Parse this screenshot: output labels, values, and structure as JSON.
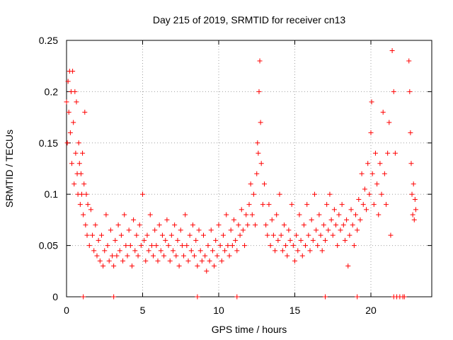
{
  "chart_data": {
    "type": "scatter",
    "title": "Day 215 of 2019, SRMTID for receiver cn13",
    "xlabel": "GPS time / hours",
    "ylabel": "SRMTID / TECUs",
    "xlim": [
      0,
      24
    ],
    "ylim": [
      0,
      0.25
    ],
    "x_ticks": [
      0,
      5,
      10,
      15,
      20
    ],
    "x_tick_labels": [
      "0",
      "5",
      "10",
      "15",
      "20"
    ],
    "y_ticks": [
      0,
      0.05,
      0.1,
      0.15,
      0.2,
      0.25
    ],
    "y_tick_labels": [
      "0",
      "0.05",
      "0.1",
      "0.15",
      "0.2",
      "0.25"
    ],
    "grid": true,
    "marker": "+",
    "series": [
      {
        "name": "cn13",
        "color": "#ff0000",
        "points": [
          [
            0.0,
            0.19
          ],
          [
            0.05,
            0.15
          ],
          [
            0.1,
            0.21
          ],
          [
            0.15,
            0.18
          ],
          [
            0.2,
            0.22
          ],
          [
            0.25,
            0.16
          ],
          [
            0.3,
            0.2
          ],
          [
            0.35,
            0.13
          ],
          [
            0.4,
            0.22
          ],
          [
            0.45,
            0.17
          ],
          [
            0.5,
            0.11
          ],
          [
            0.55,
            0.2
          ],
          [
            0.6,
            0.14
          ],
          [
            0.65,
            0.19
          ],
          [
            0.7,
            0.12
          ],
          [
            0.75,
            0.1
          ],
          [
            0.8,
            0.15
          ],
          [
            0.85,
            0.13
          ],
          [
            0.9,
            0.09
          ],
          [
            0.95,
            0.12
          ],
          [
            1.0,
            0.1
          ],
          [
            1.05,
            0.14
          ],
          [
            1.1,
            0.08
          ],
          [
            1.15,
            0.11
          ],
          [
            1.2,
            0.18
          ],
          [
            1.25,
            0.07
          ],
          [
            1.3,
            0.1
          ],
          [
            1.35,
            0.06
          ],
          [
            1.4,
            0.09
          ],
          [
            1.5,
            0.05
          ],
          [
            1.6,
            0.085
          ],
          [
            1.7,
            0.06
          ],
          [
            1.8,
            0.045
          ],
          [
            1.9,
            0.07
          ],
          [
            2.0,
            0.04
          ],
          [
            2.1,
            0.055
          ],
          [
            2.2,
            0.035
          ],
          [
            2.3,
            0.06
          ],
          [
            2.4,
            0.03
          ],
          [
            2.5,
            0.045
          ],
          [
            2.6,
            0.08
          ],
          [
            2.7,
            0.05
          ],
          [
            2.8,
            0.035
          ],
          [
            2.9,
            0.065
          ],
          [
            3.0,
            0.04
          ],
          [
            3.1,
            0.03
          ],
          [
            3.2,
            0.055
          ],
          [
            3.3,
            0.04
          ],
          [
            3.4,
            0.07
          ],
          [
            3.5,
            0.045
          ],
          [
            3.6,
            0.06
          ],
          [
            3.7,
            0.035
          ],
          [
            3.8,
            0.08
          ],
          [
            3.9,
            0.05
          ],
          [
            4.0,
            0.04
          ],
          [
            4.1,
            0.065
          ],
          [
            4.2,
            0.05
          ],
          [
            4.3,
            0.03
          ],
          [
            4.4,
            0.075
          ],
          [
            4.5,
            0.045
          ],
          [
            4.6,
            0.06
          ],
          [
            4.7,
            0.04
          ],
          [
            4.8,
            0.07
          ],
          [
            4.9,
            0.05
          ],
          [
            5.0,
            0.1
          ],
          [
            5.1,
            0.055
          ],
          [
            5.2,
            0.035
          ],
          [
            5.3,
            0.06
          ],
          [
            5.4,
            0.045
          ],
          [
            5.5,
            0.08
          ],
          [
            5.6,
            0.05
          ],
          [
            5.7,
            0.04
          ],
          [
            5.8,
            0.065
          ],
          [
            5.9,
            0.05
          ],
          [
            6.0,
            0.035
          ],
          [
            6.1,
            0.07
          ],
          [
            6.2,
            0.045
          ],
          [
            6.3,
            0.06
          ],
          [
            6.4,
            0.04
          ],
          [
            6.5,
            0.055
          ],
          [
            6.6,
            0.075
          ],
          [
            6.7,
            0.05
          ],
          [
            6.8,
            0.035
          ],
          [
            6.9,
            0.06
          ],
          [
            7.0,
            0.045
          ],
          [
            7.1,
            0.07
          ],
          [
            7.2,
            0.04
          ],
          [
            7.3,
            0.055
          ],
          [
            7.4,
            0.03
          ],
          [
            7.5,
            0.065
          ],
          [
            7.6,
            0.05
          ],
          [
            7.7,
            0.04
          ],
          [
            7.8,
            0.08
          ],
          [
            7.9,
            0.05
          ],
          [
            8.0,
            0.035
          ],
          [
            8.1,
            0.06
          ],
          [
            8.2,
            0.045
          ],
          [
            8.3,
            0.07
          ],
          [
            8.4,
            0.04
          ],
          [
            8.5,
            0.055
          ],
          [
            8.6,
            0.03
          ],
          [
            8.7,
            0.065
          ],
          [
            8.8,
            0.045
          ],
          [
            8.9,
            0.035
          ],
          [
            9.0,
            0.06
          ],
          [
            9.1,
            0.04
          ],
          [
            9.2,
            0.025
          ],
          [
            9.3,
            0.05
          ],
          [
            9.4,
            0.035
          ],
          [
            9.5,
            0.065
          ],
          [
            9.6,
            0.045
          ],
          [
            9.7,
            0.03
          ],
          [
            9.8,
            0.055
          ],
          [
            9.9,
            0.04
          ],
          [
            10.0,
            0.07
          ],
          [
            10.1,
            0.05
          ],
          [
            10.2,
            0.035
          ],
          [
            10.3,
            0.06
          ],
          [
            10.4,
            0.045
          ],
          [
            10.5,
            0.08
          ],
          [
            10.6,
            0.05
          ],
          [
            10.7,
            0.04
          ],
          [
            10.8,
            0.065
          ],
          [
            10.9,
            0.05
          ],
          [
            11.0,
            0.075
          ],
          [
            11.1,
            0.055
          ],
          [
            11.2,
            0.045
          ],
          [
            11.3,
            0.07
          ],
          [
            11.4,
            0.06
          ],
          [
            11.5,
            0.085
          ],
          [
            11.6,
            0.065
          ],
          [
            11.7,
            0.05
          ],
          [
            11.8,
            0.08
          ],
          [
            11.9,
            0.07
          ],
          [
            12.0,
            0.09
          ],
          [
            12.1,
            0.11
          ],
          [
            12.2,
            0.08
          ],
          [
            12.3,
            0.1
          ],
          [
            12.4,
            0.07
          ],
          [
            12.5,
            0.12
          ],
          [
            12.55,
            0.15
          ],
          [
            12.6,
            0.14
          ],
          [
            12.65,
            0.2
          ],
          [
            12.7,
            0.23
          ],
          [
            12.75,
            0.17
          ],
          [
            12.8,
            0.13
          ],
          [
            12.9,
            0.09
          ],
          [
            13.0,
            0.11
          ],
          [
            13.1,
            0.07
          ],
          [
            13.2,
            0.06
          ],
          [
            13.3,
            0.09
          ],
          [
            13.4,
            0.05
          ],
          [
            13.5,
            0.075
          ],
          [
            13.6,
            0.06
          ],
          [
            13.7,
            0.045
          ],
          [
            13.8,
            0.08
          ],
          [
            13.9,
            0.055
          ],
          [
            14.0,
            0.1
          ],
          [
            14.1,
            0.06
          ],
          [
            14.2,
            0.045
          ],
          [
            14.3,
            0.07
          ],
          [
            14.4,
            0.05
          ],
          [
            14.5,
            0.04
          ],
          [
            14.6,
            0.065
          ],
          [
            14.7,
            0.055
          ],
          [
            14.8,
            0.09
          ],
          [
            14.9,
            0.05
          ],
          [
            15.0,
            0.035
          ],
          [
            15.1,
            0.06
          ],
          [
            15.2,
            0.045
          ],
          [
            15.3,
            0.08
          ],
          [
            15.4,
            0.055
          ],
          [
            15.5,
            0.04
          ],
          [
            15.6,
            0.07
          ],
          [
            15.7,
            0.05
          ],
          [
            15.8,
            0.09
          ],
          [
            15.9,
            0.06
          ],
          [
            16.0,
            0.045
          ],
          [
            16.1,
            0.075
          ],
          [
            16.2,
            0.055
          ],
          [
            16.3,
            0.1
          ],
          [
            16.4,
            0.065
          ],
          [
            16.5,
            0.05
          ],
          [
            16.6,
            0.08
          ],
          [
            16.7,
            0.06
          ],
          [
            16.8,
            0.045
          ],
          [
            16.9,
            0.07
          ],
          [
            17.0,
            0.055
          ],
          [
            17.1,
            0.09
          ],
          [
            17.2,
            0.065
          ],
          [
            17.3,
            0.1
          ],
          [
            17.4,
            0.075
          ],
          [
            17.5,
            0.06
          ],
          [
            17.6,
            0.085
          ],
          [
            17.7,
            0.07
          ],
          [
            17.8,
            0.05
          ],
          [
            17.9,
            0.08
          ],
          [
            18.0,
            0.065
          ],
          [
            18.1,
            0.09
          ],
          [
            18.2,
            0.07
          ],
          [
            18.3,
            0.055
          ],
          [
            18.4,
            0.075
          ],
          [
            18.5,
            0.03
          ],
          [
            18.6,
            0.06
          ],
          [
            18.7,
            0.085
          ],
          [
            18.8,
            0.07
          ],
          [
            18.9,
            0.05
          ],
          [
            19.0,
            0.08
          ],
          [
            19.1,
            0.065
          ],
          [
            19.2,
            0.095
          ],
          [
            19.3,
            0.075
          ],
          [
            19.4,
            0.12
          ],
          [
            19.5,
            0.09
          ],
          [
            19.6,
            0.105
          ],
          [
            19.7,
            0.085
          ],
          [
            19.8,
            0.13
          ],
          [
            19.9,
            0.1
          ],
          [
            20.0,
            0.16
          ],
          [
            20.05,
            0.19
          ],
          [
            20.1,
            0.12
          ],
          [
            20.2,
            0.09
          ],
          [
            20.3,
            0.14
          ],
          [
            20.4,
            0.11
          ],
          [
            20.5,
            0.08
          ],
          [
            20.6,
            0.13
          ],
          [
            20.7,
            0.1
          ],
          [
            20.8,
            0.18
          ],
          [
            20.9,
            0.12
          ],
          [
            21.0,
            0.09
          ],
          [
            21.1,
            0.14
          ],
          [
            21.2,
            0.17
          ],
          [
            21.3,
            0.06
          ],
          [
            21.4,
            0.24
          ],
          [
            21.5,
            0.2
          ],
          [
            21.6,
            0.14
          ],
          [
            22.5,
            0.23
          ],
          [
            22.55,
            0.2
          ],
          [
            22.6,
            0.16
          ],
          [
            22.65,
            0.13
          ],
          [
            22.7,
            0.1
          ],
          [
            22.75,
            0.08
          ],
          [
            22.8,
            0.11
          ],
          [
            22.85,
            0.075
          ],
          [
            22.9,
            0.095
          ],
          [
            22.95,
            0.085
          ],
          [
            1.1,
            0.0
          ],
          [
            3.1,
            0.0
          ],
          [
            8.6,
            0.0
          ],
          [
            11.2,
            0.0
          ],
          [
            17.0,
            0.0
          ],
          [
            19.1,
            0.0
          ],
          [
            21.5,
            0.0
          ],
          [
            21.7,
            0.0
          ],
          [
            21.9,
            0.0
          ],
          [
            22.1,
            0.0
          ],
          [
            22.2,
            0.0
          ]
        ]
      }
    ]
  }
}
